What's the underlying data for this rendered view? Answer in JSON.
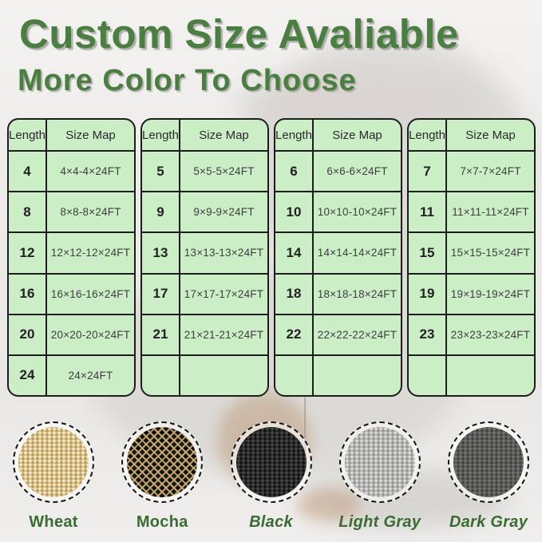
{
  "header": {
    "title": "Custom Size Avaliable",
    "subtitle": "More Color To Choose"
  },
  "tables": [
    {
      "headers": [
        "Length",
        "Size Map"
      ],
      "rows": [
        [
          "4",
          "4×4-4×24FT"
        ],
        [
          "8",
          "8×8-8×24FT"
        ],
        [
          "12",
          "12×12-12×24FT"
        ],
        [
          "16",
          "16×16-16×24FT"
        ],
        [
          "20",
          "20×20-20×24FT"
        ],
        [
          "24",
          "24×24FT"
        ]
      ]
    },
    {
      "headers": [
        "Length",
        "Size Map"
      ],
      "rows": [
        [
          "5",
          "5×5-5×24FT"
        ],
        [
          "9",
          "9×9-9×24FT"
        ],
        [
          "13",
          "13×13-13×24FT"
        ],
        [
          "17",
          "17×17-17×24FT"
        ],
        [
          "21",
          "21×21-21×24FT"
        ],
        [
          "",
          ""
        ]
      ]
    },
    {
      "headers": [
        "Length",
        "Size Map"
      ],
      "rows": [
        [
          "6",
          "6×6-6×24FT"
        ],
        [
          "10",
          "10×10-10×24FT"
        ],
        [
          "14",
          "14×14-14×24FT"
        ],
        [
          "18",
          "18×18-18×24FT"
        ],
        [
          "22",
          "22×22-22×24FT"
        ],
        [
          "",
          ""
        ]
      ]
    },
    {
      "headers": [
        "Length",
        "Size Map"
      ],
      "rows": [
        [
          "7",
          "7×7-7×24FT"
        ],
        [
          "11",
          "11×11-11×24FT"
        ],
        [
          "15",
          "15×15-15×24FT"
        ],
        [
          "19",
          "19×19-19×24FT"
        ],
        [
          "23",
          "23×23-23×24FT"
        ],
        [
          "",
          ""
        ]
      ]
    }
  ],
  "swatches": [
    {
      "label": "Wheat",
      "color": "#d9be85"
    },
    {
      "label": "Mocha",
      "color": "#7a6443"
    },
    {
      "label": "Black",
      "color": "#2c2c2c"
    },
    {
      "label": "Light Gray",
      "color": "#b4b4b2"
    },
    {
      "label": "Dark Gray",
      "color": "#5e5e5c"
    }
  ],
  "theme": {
    "heading_green": "#4a7f41",
    "label_green": "#3a6b33",
    "table_fill": "#cbeec7",
    "table_border": "#1d1d1d"
  }
}
